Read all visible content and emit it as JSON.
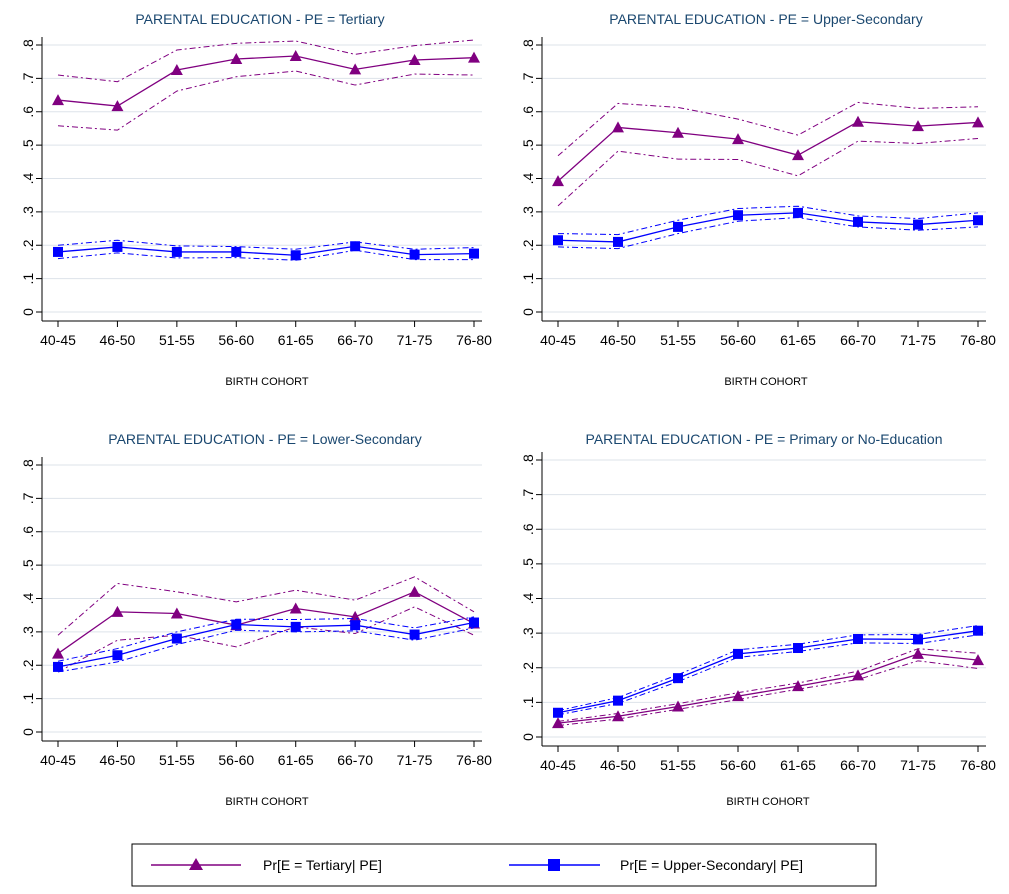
{
  "colors": {
    "tertiary": "#800080",
    "upper_secondary": "#0000ff",
    "grid": "#dde3ea",
    "title": "#1a476f",
    "axis": "#000000"
  },
  "legend": {
    "items": [
      {
        "label": "Pr[E = Tertiary| PE]",
        "marker": "triangle",
        "color": "#800080"
      },
      {
        "label": "Pr[E = Upper-Secondary| PE]",
        "marker": "square",
        "color": "#0000ff"
      }
    ]
  },
  "chart_data": [
    {
      "type": "line",
      "title": "PARENTAL EDUCATION - PE = Tertiary",
      "xlabel": "BIRTH COHORT",
      "ylabel": "",
      "categories": [
        "40-45",
        "46-50",
        "51-55",
        "56-60",
        "61-65",
        "66-70",
        "71-75",
        "76-80"
      ],
      "ylim": [
        0,
        0.8
      ],
      "yticks": [
        "0",
        ".1",
        ".2",
        ".3",
        ".4",
        ".5",
        ".6",
        ".7",
        ".8"
      ],
      "grid": true,
      "series": [
        {
          "name": "Pr[E = Tertiary| PE]",
          "marker": "triangle",
          "values": [
            0.635,
            0.617,
            0.725,
            0.758,
            0.767,
            0.727,
            0.755,
            0.762
          ],
          "upper": [
            0.71,
            0.69,
            0.785,
            0.805,
            0.812,
            0.772,
            0.798,
            0.815
          ],
          "lower": [
            0.558,
            0.545,
            0.662,
            0.705,
            0.722,
            0.68,
            0.713,
            0.71
          ]
        },
        {
          "name": "Pr[E = Upper-Secondary| PE]",
          "marker": "square",
          "values": [
            0.18,
            0.195,
            0.18,
            0.18,
            0.17,
            0.197,
            0.172,
            0.175
          ],
          "upper": [
            0.2,
            0.215,
            0.198,
            0.196,
            0.188,
            0.21,
            0.188,
            0.193
          ],
          "lower": [
            0.16,
            0.177,
            0.162,
            0.163,
            0.155,
            0.185,
            0.157,
            0.157
          ]
        }
      ]
    },
    {
      "type": "line",
      "title": "PARENTAL EDUCATION - PE = Upper-Secondary",
      "xlabel": "BIRTH COHORT",
      "ylabel": "",
      "categories": [
        "40-45",
        "46-50",
        "51-55",
        "56-60",
        "61-65",
        "66-70",
        "71-75",
        "76-80"
      ],
      "ylim": [
        0,
        0.8
      ],
      "yticks": [
        "0",
        ".1",
        ".2",
        ".3",
        ".4",
        ".5",
        ".6",
        ".7",
        ".8"
      ],
      "grid": true,
      "series": [
        {
          "name": "Pr[E = Tertiary| PE]",
          "marker": "triangle",
          "values": [
            0.392,
            0.553,
            0.537,
            0.518,
            0.47,
            0.57,
            0.557,
            0.568
          ],
          "upper": [
            0.468,
            0.625,
            0.613,
            0.578,
            0.53,
            0.628,
            0.61,
            0.615
          ],
          "lower": [
            0.318,
            0.482,
            0.458,
            0.457,
            0.408,
            0.512,
            0.505,
            0.52
          ]
        },
        {
          "name": "Pr[E = Upper-Secondary| PE]",
          "marker": "square",
          "values": [
            0.215,
            0.21,
            0.255,
            0.29,
            0.297,
            0.27,
            0.262,
            0.275
          ],
          "upper": [
            0.235,
            0.232,
            0.275,
            0.31,
            0.317,
            0.288,
            0.28,
            0.297
          ],
          "lower": [
            0.195,
            0.19,
            0.235,
            0.272,
            0.283,
            0.255,
            0.245,
            0.255
          ]
        }
      ]
    },
    {
      "type": "line",
      "title": "PARENTAL EDUCATION - PE = Lower-Secondary",
      "xlabel": "BIRTH COHORT",
      "ylabel": "",
      "categories": [
        "40-45",
        "46-50",
        "51-55",
        "56-60",
        "61-65",
        "66-70",
        "71-75",
        "76-80"
      ],
      "ylim": [
        0,
        0.8
      ],
      "yticks": [
        "0",
        ".1",
        ".2",
        ".3",
        ".4",
        ".5",
        ".6",
        ".7",
        ".8"
      ],
      "grid": true,
      "series": [
        {
          "name": "Pr[E = Tertiary| PE]",
          "marker": "triangle",
          "values": [
            0.235,
            0.36,
            0.355,
            0.32,
            0.37,
            0.345,
            0.42,
            0.325
          ],
          "upper": [
            0.29,
            0.445,
            0.42,
            0.39,
            0.425,
            0.395,
            0.465,
            0.36
          ],
          "lower": [
            0.18,
            0.275,
            0.29,
            0.255,
            0.315,
            0.295,
            0.375,
            0.29
          ]
        },
        {
          "name": "Pr[E = Upper-Secondary| PE]",
          "marker": "square",
          "values": [
            0.195,
            0.23,
            0.28,
            0.322,
            0.315,
            0.32,
            0.292,
            0.328
          ],
          "upper": [
            0.212,
            0.25,
            0.3,
            0.338,
            0.337,
            0.34,
            0.312,
            0.345
          ],
          "lower": [
            0.18,
            0.21,
            0.262,
            0.305,
            0.3,
            0.303,
            0.275,
            0.312
          ]
        }
      ]
    },
    {
      "type": "line",
      "title": "PARENTAL EDUCATION - PE = Primary or No-Education",
      "xlabel": "BIRTH COHORT",
      "ylabel": "",
      "categories": [
        "40-45",
        "46-50",
        "51-55",
        "56-60",
        "61-65",
        "66-70",
        "71-75",
        "76-80"
      ],
      "ylim": [
        0,
        0.8
      ],
      "yticks": [
        "0",
        ".1",
        ".2",
        ".3",
        ".4",
        ".5",
        ".6",
        ".7",
        ".8"
      ],
      "grid": true,
      "series": [
        {
          "name": "Pr[E = Tertiary| PE]",
          "marker": "triangle",
          "values": [
            0.04,
            0.06,
            0.088,
            0.118,
            0.147,
            0.178,
            0.24,
            0.222
          ],
          "upper": [
            0.045,
            0.068,
            0.096,
            0.128,
            0.156,
            0.19,
            0.255,
            0.242
          ],
          "lower": [
            0.033,
            0.052,
            0.08,
            0.108,
            0.138,
            0.166,
            0.22,
            0.198
          ]
        },
        {
          "name": "Pr[E = Upper-Secondary| PE]",
          "marker": "square",
          "values": [
            0.07,
            0.105,
            0.17,
            0.24,
            0.257,
            0.283,
            0.282,
            0.307
          ],
          "upper": [
            0.076,
            0.114,
            0.18,
            0.252,
            0.268,
            0.295,
            0.296,
            0.322
          ],
          "lower": [
            0.064,
            0.097,
            0.16,
            0.23,
            0.247,
            0.272,
            0.27,
            0.295
          ]
        }
      ]
    }
  ]
}
